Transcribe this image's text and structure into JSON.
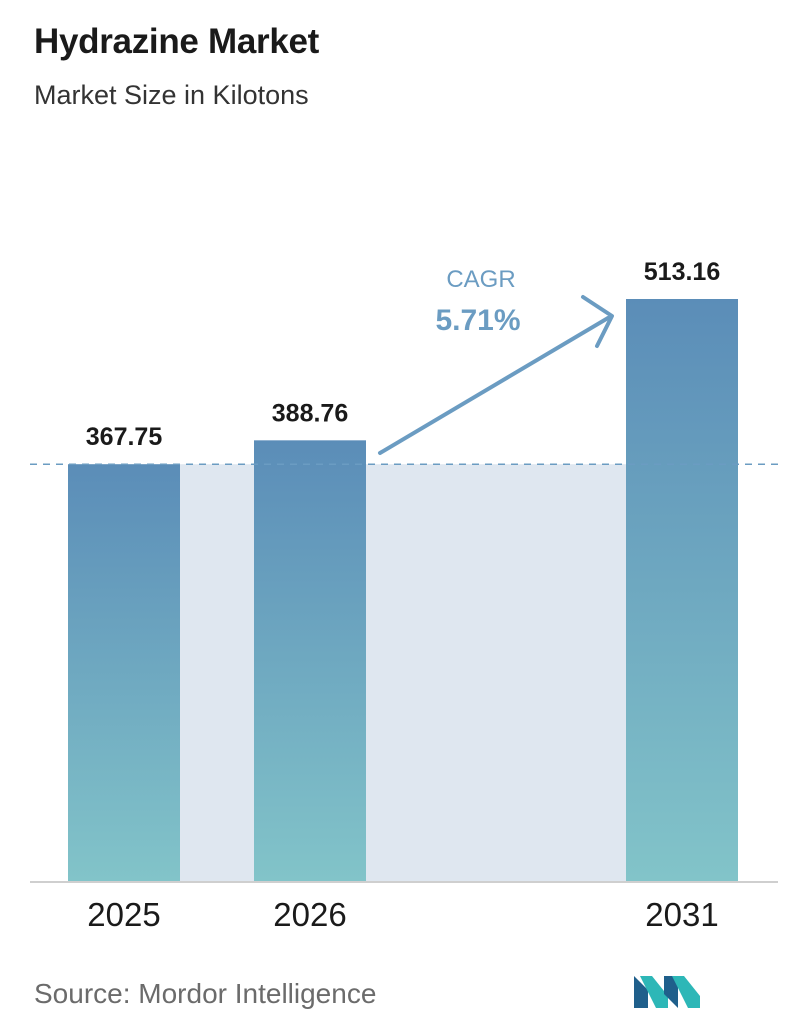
{
  "header": {
    "title": "Hydrazine Market",
    "subtitle": "Market Size in Kilotons"
  },
  "footer": {
    "source": "Source:  Mordor Intelligence"
  },
  "annotation": {
    "cagr_label": "CAGR",
    "cagr_value": "5.71%"
  },
  "colors": {
    "bar_top": "#5b8db8",
    "bar_bottom": "#82c4c9",
    "band": "#dfe7f0",
    "arrow": "#6b9cc2",
    "dashed_line": "#6b9cc2",
    "axis": "#cfcfcf",
    "logo_dark": "#1f5f8b",
    "logo_light": "#2db7b7"
  },
  "chart_data": {
    "type": "bar",
    "title": "Hydrazine Market",
    "subtitle": "Market Size in Kilotons",
    "categories": [
      "2025",
      "2026",
      "2031"
    ],
    "values": [
      367.75,
      388.76,
      513.16
    ],
    "value_labels": [
      "367.75",
      "388.76",
      "513.16"
    ],
    "ylim": [
      0,
      513.16
    ],
    "grid": false,
    "reference_line": {
      "style": "dashed",
      "value": 367.75
    },
    "annotations": [
      {
        "text": "CAGR",
        "value": "5.71%",
        "type": "arrow",
        "from": "2026",
        "to": "2031"
      }
    ]
  }
}
